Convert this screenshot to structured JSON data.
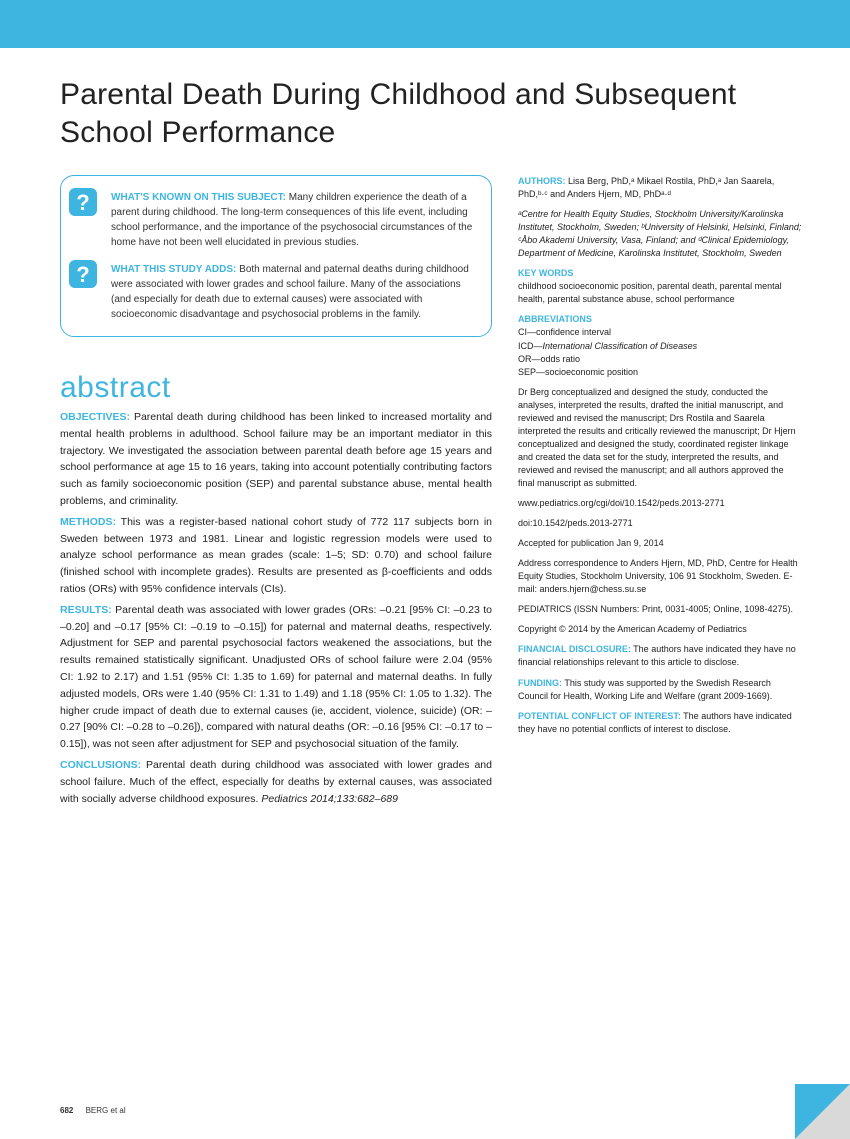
{
  "banner_color": "#3eb5e0",
  "title": "Parental Death During Childhood and Subsequent School Performance",
  "summary": {
    "known_label": "WHAT'S KNOWN ON THIS SUBJECT:",
    "known_text": " Many children experience the death of a parent during childhood. The long-term consequences of this life event, including school performance, and the importance of the psychosocial circumstances of the home have not been well elucidated in previous studies.",
    "adds_label": "WHAT THIS STUDY ADDS:",
    "adds_text": " Both maternal and paternal deaths during childhood were associated with lower grades and school failure. Many of the associations (and especially for death due to external causes) were associated with socioeconomic disadvantage and psychosocial problems in the family."
  },
  "abstract": {
    "heading": "abstract",
    "objectives_label": "OBJECTIVES:",
    "objectives_text": " Parental death during childhood has been linked to increased mortality and mental health problems in adulthood. School failure may be an important mediator in this trajectory. We investigated the association between parental death before age 15 years and school performance at age 15 to 16 years, taking into account potentially contributing factors such as family socioeconomic position (SEP) and parental substance abuse, mental health problems, and criminality.",
    "methods_label": "METHODS:",
    "methods_text": " This was a register-based national cohort study of 772 117 subjects born in Sweden between 1973 and 1981. Linear and logistic regression models were used to analyze school performance as mean grades (scale: 1–5; SD: 0.70) and school failure (finished school with incomplete grades). Results are presented as β-coefficients and odds ratios (ORs) with 95% confidence intervals (CIs).",
    "results_label": "RESULTS:",
    "results_text": " Parental death was associated with lower grades (ORs: –0.21 [95% CI: –0.23 to –0.20] and –0.17 [95% CI: –0.19 to –0.15]) for paternal and maternal deaths, respectively. Adjustment for SEP and parental psychosocial factors weakened the associations, but the results remained statistically significant. Unadjusted ORs of school failure were 2.04 (95% CI: 1.92 to 2.17) and 1.51 (95% CI: 1.35 to 1.69) for paternal and maternal deaths. In fully adjusted models, ORs were 1.40 (95% CI: 1.31 to 1.49) and 1.18 (95% CI: 1.05 to 1.32). The higher crude impact of death due to external causes (ie, accident, violence, suicide) (OR: –0.27 [90% CI: –0.28 to –0.26]), compared with natural deaths (OR: –0.16 [95% CI: –0.17 to –0.15]), was not seen after adjustment for SEP and psychosocial situation of the family.",
    "conclusions_label": "CONCLUSIONS:",
    "conclusions_text": " Parental death during childhood was associated with lower grades and school failure. Much of the effect, especially for deaths by external causes, was associated with socially adverse childhood exposures. ",
    "citation": "Pediatrics 2014;133:682–689"
  },
  "meta": {
    "authors_label": "AUTHORS:",
    "authors_text": " Lisa Berg, PhD,ᵃ Mikael Rostila, PhD,ᵃ Jan Saarela, PhD,ᵇ·ᶜ and Anders Hjern, MD, PhDᵃ·ᵈ",
    "affiliations": "ᵃCentre for Health Equity Studies, Stockholm University/Karolinska Institutet, Stockholm, Sweden; ᵇUniversity of Helsinki, Helsinki, Finland; ᶜÅbo Akademi University, Vasa, Finland; and ᵈClinical Epidemiology, Department of Medicine, Karolinska Institutet, Stockholm, Sweden",
    "keywords_label": "KEY WORDS",
    "keywords_text": "childhood socioeconomic position, parental death, parental mental health, parental substance abuse, school performance",
    "abbrev_label": "ABBREVIATIONS",
    "abbrev_ci": "CI—confidence interval",
    "abbrev_icd": "ICD—International Classification of Diseases",
    "abbrev_or": "OR—odds ratio",
    "abbrev_sep": "SEP—socioeconomic position",
    "contributions": "Dr Berg conceptualized and designed the study, conducted the analyses, interpreted the results, drafted the initial manuscript, and reviewed and revised the manuscript; Drs Rostila and Saarela interpreted the results and critically reviewed the manuscript; Dr Hjern conceptualized and designed the study, coordinated register linkage and created the data set for the study, interpreted the results, and reviewed and revised the manuscript; and all authors approved the final manuscript as submitted.",
    "url": "www.pediatrics.org/cgi/doi/10.1542/peds.2013-2771",
    "doi": "doi:10.1542/peds.2013-2771",
    "accepted": "Accepted for publication Jan 9, 2014",
    "correspondence": "Address correspondence to Anders Hjern, MD, PhD, Centre for Health Equity Studies, Stockholm University, 106 91 Stockholm, Sweden. E-mail: anders.hjern@chess.su.se",
    "issn": "PEDIATRICS (ISSN Numbers: Print, 0031-4005; Online, 1098-4275).",
    "copyright": "Copyright © 2014 by the American Academy of Pediatrics",
    "findisc_label": "FINANCIAL DISCLOSURE:",
    "findisc_text": " The authors have indicated they have no financial relationships relevant to this article to disclose.",
    "funding_label": "FUNDING:",
    "funding_text": " This study was supported by the Swedish Research Council for Health, Working Life and Welfare (grant 2009-1669).",
    "coi_label": "POTENTIAL CONFLICT OF INTEREST:",
    "coi_text": " The authors have indicated they have no potential conflicts of interest to disclose."
  },
  "footer": {
    "page": "682",
    "tag": "BERG et al"
  }
}
